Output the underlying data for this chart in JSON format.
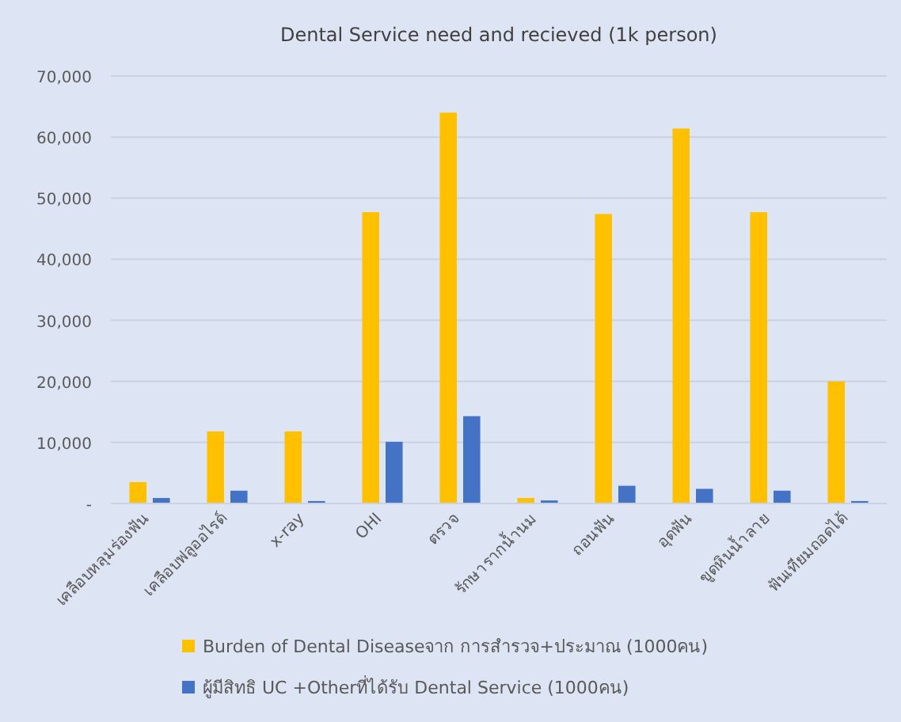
{
  "chart_data": {
    "type": "bar",
    "title": "Dental Service need and recieved (1k person)",
    "categories": [
      "เคลือบหลุมร่องฟัน",
      "เคลือบฟลูออไรด์",
      "x-ray",
      "OHI",
      "ตรวจ",
      "รักษารากน้ำนม",
      "ถอนฟัน",
      "อุดฟัน",
      "ขูดหินน้ำลาย",
      "ฟันเทียมถอดได้"
    ],
    "series": [
      {
        "name": "Burden of Dental Diseaseจาก การสำรวจ+ประมาณ (1000คน)",
        "color": "#ffc000",
        "values": [
          3500,
          11800,
          11800,
          47700,
          64000,
          900,
          47400,
          61400,
          47700,
          20000
        ]
      },
      {
        "name": "ผู้มีสิทธิ UC +Otherที่ได้รับ Dental Service (1000คน)",
        "color": "#4472c4",
        "values": [
          900,
          2100,
          400,
          10100,
          14300,
          500,
          2900,
          2400,
          2100,
          400
        ]
      }
    ],
    "ylim": [
      0,
      70000
    ],
    "yticks": [
      {
        "value": 0,
        "label": "-"
      },
      {
        "value": 10000,
        "label": "10,000"
      },
      {
        "value": 20000,
        "label": "20,000"
      },
      {
        "value": 30000,
        "label": "30,000"
      },
      {
        "value": 40000,
        "label": "40,000"
      },
      {
        "value": 50000,
        "label": "50,000"
      },
      {
        "value": 60000,
        "label": "60,000"
      },
      {
        "value": 70000,
        "label": "70,000"
      }
    ],
    "grid": "y",
    "legend": "bottom"
  }
}
